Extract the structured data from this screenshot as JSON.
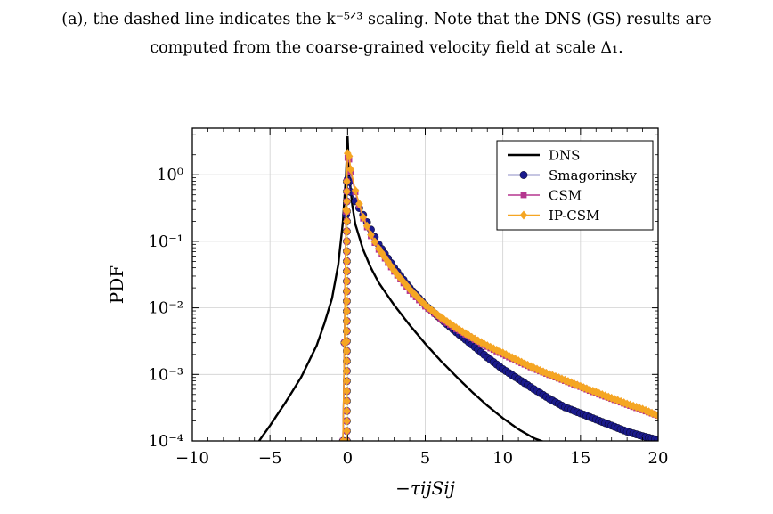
{
  "caption": {
    "line1": "(a), the dashed line indicates the k⁻⁵ᐟ³ scaling. Note that the DNS (GS) results are",
    "line2": "computed from the coarse-grained velocity field at scale Δ₁."
  },
  "chart_data": {
    "type": "line",
    "xlabel": "−τijSij",
    "ylabel": "PDF",
    "xlim": [
      -10,
      20
    ],
    "ylim": [
      0.0001,
      5
    ],
    "yscale": "log",
    "grid": true,
    "legend_position": "top-right",
    "x_ticks": [
      -10,
      -5,
      0,
      5,
      10,
      15,
      20
    ],
    "x_tick_labels": [
      "−10",
      "−5",
      "0",
      "5",
      "10",
      "15",
      "20"
    ],
    "y_ticks": [
      0.0001,
      0.001,
      0.01,
      0.1,
      1
    ],
    "y_tick_labels": [
      "10⁻⁴",
      "10⁻³",
      "10⁻²",
      "10⁻¹",
      "10⁰"
    ],
    "series": [
      {
        "name": "DNS",
        "color": "#000000",
        "marker": "none",
        "x": [
          -5.7,
          -5.0,
          -4.0,
          -3.0,
          -2.0,
          -1.5,
          -1.0,
          -0.6,
          -0.3,
          -0.1,
          0.0,
          0.1,
          0.3,
          0.5,
          1.0,
          1.5,
          2.0,
          3.0,
          4.0,
          5.0,
          6.0,
          7.0,
          8.0,
          9.0,
          10.0,
          11.0,
          12.0,
          13.0
        ],
        "y": [
          0.0001,
          0.00017,
          0.00038,
          0.0009,
          0.0027,
          0.0058,
          0.014,
          0.045,
          0.2,
          1.0,
          3.8,
          1.0,
          0.35,
          0.18,
          0.075,
          0.04,
          0.024,
          0.011,
          0.0055,
          0.0029,
          0.0016,
          0.00093,
          0.00055,
          0.00034,
          0.00022,
          0.00015,
          0.00011,
          9e-05
        ]
      },
      {
        "name": "Smagorinsky",
        "color": "#1a1a8c",
        "marker": "circle",
        "x": [
          -0.3,
          -0.2,
          -0.1,
          0.0,
          0.1,
          0.2,
          0.5,
          1.0,
          1.5,
          2.0,
          3.0,
          4.0,
          5.0,
          6.0,
          7.0,
          8.0,
          9.0,
          10.0,
          11.0,
          12.0,
          13.0,
          14.0,
          15.0,
          16.0,
          17.0,
          18.0,
          19.0,
          20.0
        ],
        "y": [
          0.0001,
          0.003,
          0.25,
          0.85,
          0.78,
          0.55,
          0.4,
          0.25,
          0.15,
          0.09,
          0.04,
          0.02,
          0.011,
          0.0068,
          0.0043,
          0.0028,
          0.0018,
          0.0012,
          0.00085,
          0.0006,
          0.00043,
          0.00032,
          0.00026,
          0.00021,
          0.00017,
          0.000138,
          0.000118,
          0.000103
        ]
      },
      {
        "name": "CSM",
        "color": "#b5368f",
        "marker": "square",
        "x": [
          -0.3,
          -0.2,
          -0.1,
          0.0,
          0.1,
          0.2,
          0.5,
          1.0,
          1.5,
          2.0,
          3.0,
          4.0,
          5.0,
          6.0,
          7.0,
          8.0,
          9.0,
          10.0,
          11.0,
          12.0,
          13.0,
          14.0,
          15.0,
          16.0,
          17.0,
          18.0,
          19.0,
          20.0
        ],
        "y": [
          0.0001,
          0.003,
          0.28,
          1.8,
          1.7,
          1.1,
          0.55,
          0.22,
          0.12,
          0.075,
          0.035,
          0.018,
          0.0105,
          0.0069,
          0.0048,
          0.0035,
          0.0026,
          0.002,
          0.00155,
          0.00122,
          0.00098,
          0.0008,
          0.00065,
          0.00052,
          0.00043,
          0.00035,
          0.00029,
          0.00024
        ]
      },
      {
        "name": "IP-CSM",
        "color": "#f5a623",
        "marker": "diamond",
        "x": [
          -0.3,
          -0.2,
          -0.1,
          0.0,
          0.1,
          0.2,
          0.5,
          1.0,
          1.5,
          2.0,
          3.0,
          4.0,
          5.0,
          6.0,
          7.0,
          8.0,
          9.0,
          10.0,
          11.0,
          12.0,
          13.0,
          14.0,
          15.0,
          16.0,
          17.0,
          18.0,
          19.0,
          20.0
        ],
        "y": [
          0.0001,
          0.003,
          0.3,
          2.1,
          1.9,
          1.2,
          0.58,
          0.23,
          0.125,
          0.078,
          0.036,
          0.019,
          0.011,
          0.0072,
          0.005,
          0.0036,
          0.0027,
          0.0021,
          0.0016,
          0.00125,
          0.001,
          0.00082,
          0.00066,
          0.00054,
          0.00044,
          0.00036,
          0.0003,
          0.00024
        ]
      }
    ]
  }
}
